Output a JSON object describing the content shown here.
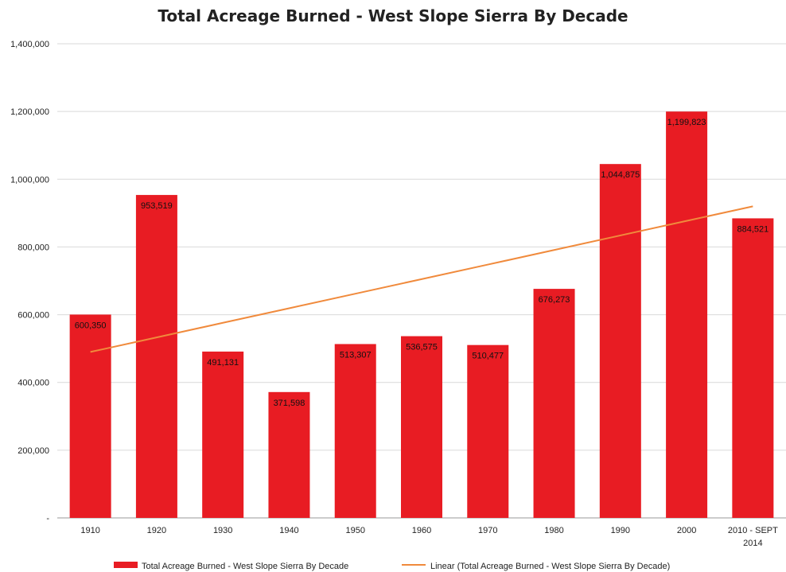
{
  "chart_data": {
    "type": "bar",
    "title": "Total Acreage Burned - West Slope Sierra By Decade",
    "xlabel": "",
    "ylabel": "",
    "categories": [
      "1910",
      "1920",
      "1930",
      "1940",
      "1950",
      "1960",
      "1970",
      "1980",
      "1990",
      "2000",
      "2010 - SEPT 2014"
    ],
    "series": [
      {
        "name": "Total Acreage Burned - West Slope Sierra By Decade",
        "values": [
          600350,
          953519,
          491131,
          371598,
          513307,
          536575,
          510477,
          676273,
          1044875,
          1199823,
          884521
        ],
        "labels": [
          "600,350",
          "953,519",
          "491,131",
          "371,598",
          "513,307",
          "536,575",
          "510,477",
          "676,273",
          "1,044,875",
          "1,199,823",
          "884,521"
        ],
        "color": "#e81c23"
      },
      {
        "name": "Linear (Total Acreage Burned - West Slope Sierra By Decade)",
        "type": "trendline",
        "values": [
          490000,
          533000,
          576000,
          619000,
          662000,
          705000,
          748000,
          791000,
          834000,
          877000,
          920000
        ],
        "color": "#f08a3c"
      }
    ],
    "ylim": [
      0,
      1400000
    ],
    "yticks": [
      "-",
      "200,000",
      "400,000",
      "600,000",
      "800,000",
      "1,000,000",
      "1,200,000",
      "1,400,000"
    ],
    "grid": true,
    "legend": "bottom"
  }
}
